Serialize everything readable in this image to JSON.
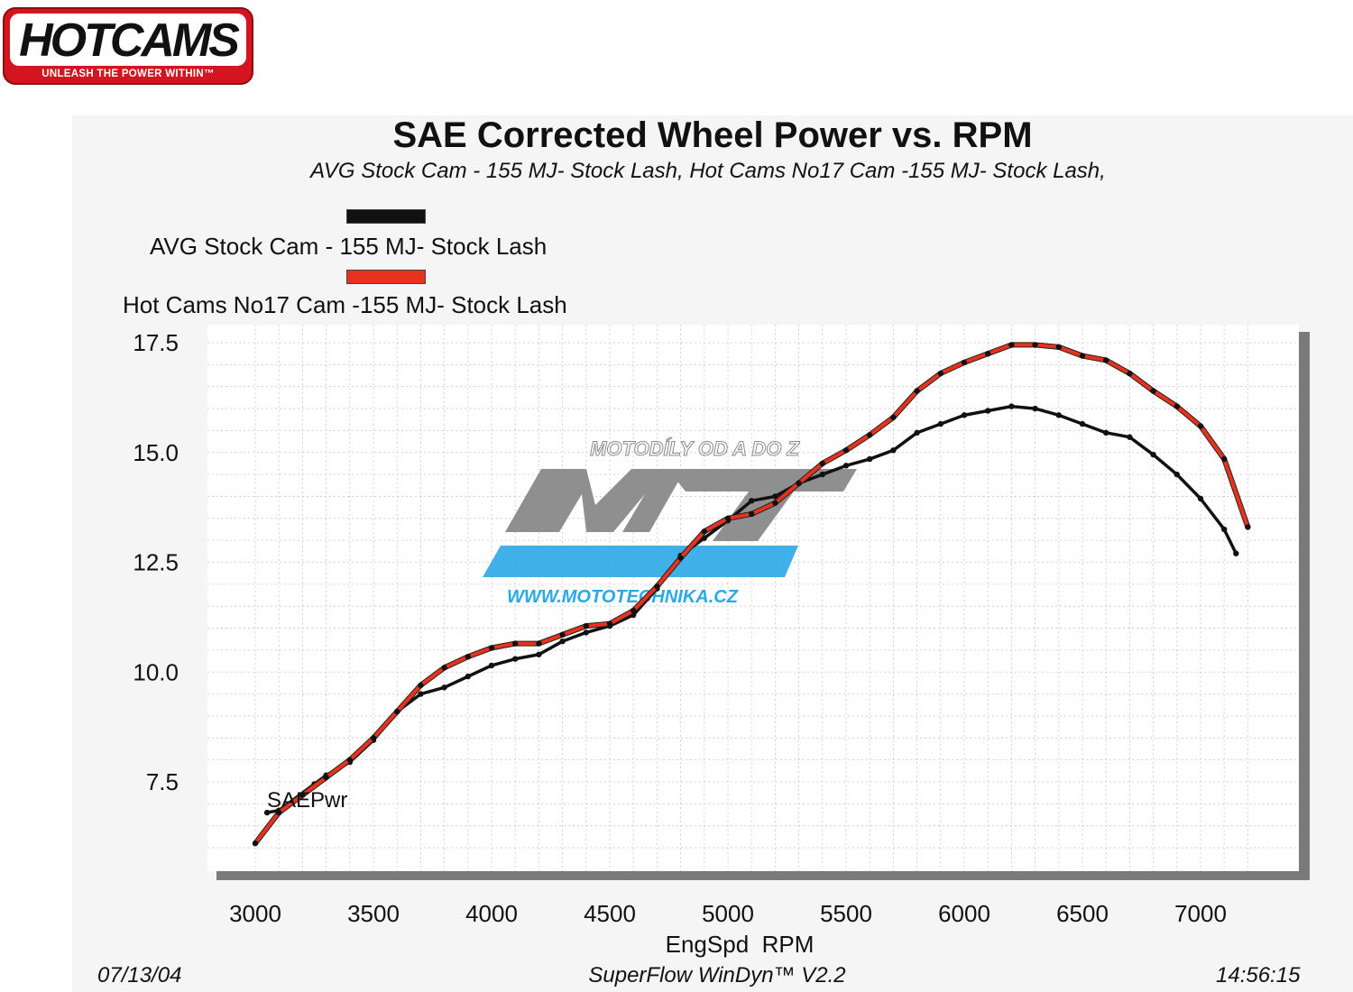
{
  "logo": {
    "brand": "HOTCAMS",
    "tagline": "UNLEASH THE POWER WITHIN™",
    "colors": {
      "red": "#d4151f",
      "black": "#111111"
    }
  },
  "watermark": {
    "top_text": "MOTODÍLY OD A DO Z",
    "mark": "MTZ",
    "bottom_text": "WWW.MOTOTECHNIKA.CZ"
  },
  "footer": {
    "date": "07/13/04",
    "software": "SuperFlow WinDyn™ V2.2",
    "time": "14:56:15"
  },
  "chart_data": {
    "type": "line",
    "title": "SAE Corrected Wheel Power vs. RPM",
    "subtitle": "AVG Stock Cam - 155 MJ- Stock Lash, Hot Cams No17 Cam -155 MJ- Stock Lash,",
    "xlabel": "EngSpd  RPM",
    "ylabel": "",
    "series_label": "SAEPwr",
    "xlim": [
      2800,
      7350
    ],
    "ylim": [
      5.6,
      17.8
    ],
    "xticks": [
      3000,
      3500,
      4000,
      4500,
      5000,
      5500,
      6000,
      6500,
      7000
    ],
    "xtick_labels": [
      "3000",
      "3500",
      "4000",
      "4500",
      "5000",
      "5500",
      "6000",
      "6500",
      "7000"
    ],
    "yticks": [
      7.5,
      10.0,
      12.5,
      15.0,
      17.5
    ],
    "ytick_labels": [
      "7.5",
      "10.0",
      "12.5",
      "15.0",
      "17.5"
    ],
    "grid": true,
    "legend_position": "top-left",
    "series": [
      {
        "name": "AVG Stock Cam - 155 MJ- Stock Lash",
        "color": "#111111",
        "x": [
          3050,
          3100,
          3250,
          3300,
          3400,
          3500,
          3600,
          3700,
          3800,
          3900,
          4000,
          4100,
          4200,
          4300,
          4400,
          4500,
          4600,
          4700,
          4800,
          4900,
          5000,
          5100,
          5200,
          5300,
          5400,
          5500,
          5600,
          5700,
          5800,
          5900,
          6000,
          6100,
          6200,
          6300,
          6400,
          6500,
          6600,
          6700,
          6800,
          6900,
          7000,
          7100,
          7150
        ],
        "y": [
          6.8,
          6.85,
          7.45,
          7.65,
          7.95,
          8.45,
          9.1,
          9.5,
          9.65,
          9.9,
          10.15,
          10.3,
          10.4,
          10.7,
          10.9,
          11.05,
          11.3,
          11.9,
          12.65,
          13.05,
          13.45,
          13.9,
          14.0,
          14.3,
          14.5,
          14.7,
          14.85,
          15.05,
          15.45,
          15.65,
          15.85,
          15.95,
          16.05,
          16.0,
          15.85,
          15.65,
          15.45,
          15.35,
          14.95,
          14.5,
          13.95,
          13.25,
          12.7
        ]
      },
      {
        "name": "Hot Cams No17 Cam -155 MJ- Stock Lash",
        "color": "#e8321e",
        "x": [
          3000,
          3100,
          3200,
          3300,
          3400,
          3500,
          3600,
          3700,
          3800,
          3900,
          4000,
          4100,
          4200,
          4300,
          4400,
          4500,
          4600,
          4700,
          4800,
          4900,
          5000,
          5100,
          5200,
          5300,
          5400,
          5500,
          5600,
          5700,
          5800,
          5900,
          6000,
          6100,
          6200,
          6300,
          6400,
          6500,
          6600,
          6700,
          6800,
          6900,
          7000,
          7100,
          7200
        ],
        "y": [
          6.1,
          6.8,
          7.2,
          7.6,
          8.0,
          8.5,
          9.1,
          9.7,
          10.1,
          10.35,
          10.55,
          10.65,
          10.65,
          10.85,
          11.05,
          11.1,
          11.4,
          11.95,
          12.6,
          13.2,
          13.5,
          13.6,
          13.85,
          14.3,
          14.75,
          15.05,
          15.4,
          15.8,
          16.4,
          16.8,
          17.05,
          17.25,
          17.45,
          17.45,
          17.4,
          17.2,
          17.1,
          16.8,
          16.4,
          16.05,
          15.6,
          14.85,
          13.3
        ]
      }
    ]
  }
}
